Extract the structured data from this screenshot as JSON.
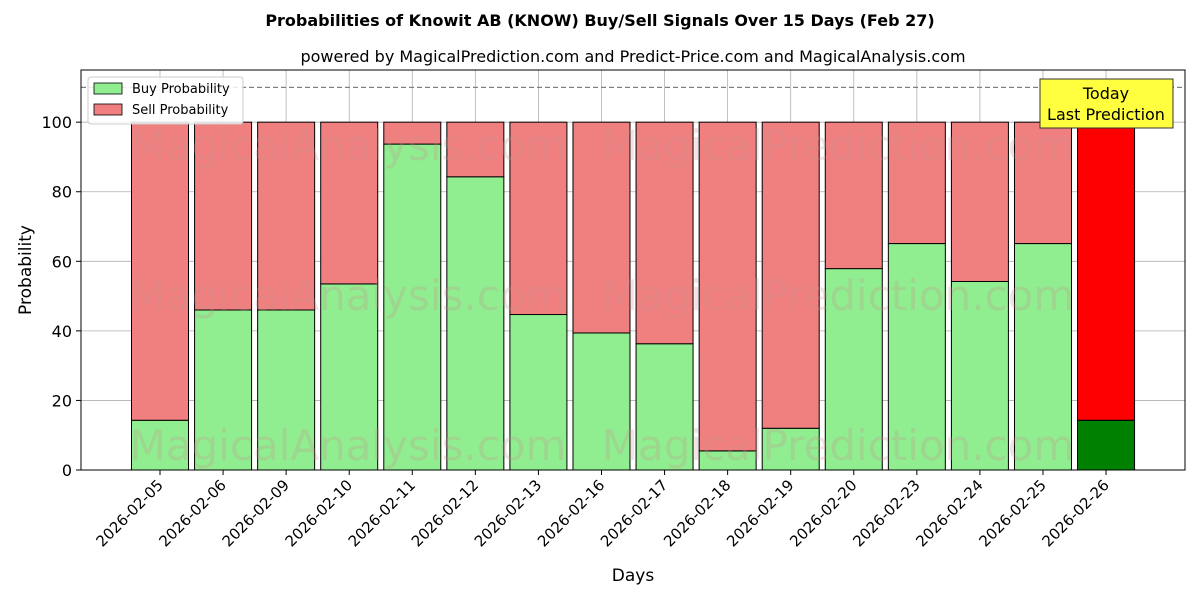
{
  "chart_data": {
    "type": "bar",
    "title": "Probabilities of Knowit AB (KNOW) Buy/Sell Signals Over 15 Days (Feb 27)",
    "subtitle": "powered by MagicalPrediction.com and Predict-Price.com and MagicalAnalysis.com",
    "xlabel": "Days",
    "ylabel": "Probability",
    "ylim": [
      0,
      115
    ],
    "yticks": [
      0,
      20,
      40,
      60,
      80,
      100
    ],
    "grid": true,
    "stacked": true,
    "categories": [
      "2026-02-05",
      "2026-02-06",
      "2026-02-09",
      "2026-02-10",
      "2026-02-11",
      "2026-02-12",
      "2026-02-13",
      "2026-02-16",
      "2026-02-17",
      "2026-02-18",
      "2026-02-19",
      "2026-02-20",
      "2026-02-23",
      "2026-02-24",
      "2026-02-25",
      "2026-02-26"
    ],
    "series": [
      {
        "name": "Buy Probability",
        "color": "#90ee90",
        "values": [
          14.3,
          46.0,
          46.0,
          53.5,
          93.7,
          84.3,
          44.7,
          39.4,
          36.3,
          5.5,
          12.0,
          57.9,
          65.1,
          54.2,
          65.1,
          14.3
        ]
      },
      {
        "name": "Sell Probability",
        "color": "#f08080",
        "values": [
          85.7,
          54.0,
          54.0,
          46.5,
          6.3,
          15.7,
          55.3,
          60.6,
          63.7,
          94.5,
          88.0,
          42.1,
          34.9,
          45.8,
          34.9,
          85.7
        ]
      }
    ],
    "highlight": {
      "index": 15,
      "buy_color": "#008000",
      "sell_color": "#ff0000"
    },
    "reference_line": {
      "y": 110,
      "style": "dashed",
      "color": "#808080"
    },
    "legend": {
      "placement": "top-left",
      "entries": [
        "Buy Probability",
        "Sell Probability"
      ]
    },
    "annotation": {
      "lines": [
        "Today",
        "Last Prediction"
      ],
      "placement": "top-right",
      "background": "#ffff40"
    },
    "watermark": [
      "MagicalAnalysis.com",
      "MagicalPrediction.com"
    ]
  }
}
